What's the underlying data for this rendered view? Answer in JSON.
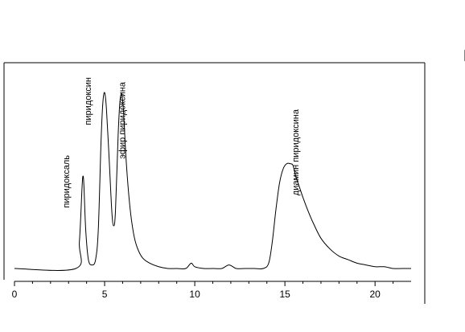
{
  "chart_data": {
    "type": "line",
    "title": "",
    "xlabel": "",
    "ylabel": "",
    "xlim": [
      0,
      22
    ],
    "ylim": [
      0,
      1
    ],
    "grid": false,
    "x_ticks": [
      "0",
      "5",
      "10",
      "15",
      "20"
    ],
    "series": [
      {
        "x": [
          0,
          3.4,
          3.6,
          3.75,
          3.8,
          3.85,
          3.95,
          4.1,
          4.3,
          4.5,
          4.65,
          4.8,
          4.9,
          5.0,
          5.1,
          5.25,
          5.4,
          5.5,
          5.6,
          5.75,
          5.85,
          5.95,
          6.05,
          6.2,
          6.4,
          6.6,
          6.8,
          7.1,
          7.5,
          8.0,
          8.5,
          9.0,
          9.5,
          9.8,
          10.0,
          10.5,
          11.0,
          11.5,
          11.9,
          12.3,
          12.8,
          13.3,
          13.8,
          14.1,
          14.3,
          14.5,
          14.7,
          14.9,
          15.1,
          15.3,
          15.45,
          15.6,
          15.8,
          16.0,
          16.3,
          16.6,
          17.0,
          17.5,
          18.0,
          18.5,
          19.0,
          19.5,
          20.0,
          20.5,
          21.0,
          21.5,
          22.0
        ],
        "y": [
          0.0,
          0.0,
          0.15,
          0.46,
          0.52,
          0.47,
          0.22,
          0.05,
          0.02,
          0.05,
          0.22,
          0.71,
          0.93,
          0.99,
          0.9,
          0.62,
          0.32,
          0.24,
          0.32,
          0.75,
          0.94,
          0.98,
          0.88,
          0.6,
          0.35,
          0.2,
          0.12,
          0.06,
          0.03,
          0.01,
          0.0,
          0.0,
          0.0,
          0.03,
          0.01,
          0.0,
          0.0,
          0.0,
          0.02,
          0.0,
          0.0,
          0.0,
          0.0,
          0.03,
          0.15,
          0.33,
          0.48,
          0.56,
          0.59,
          0.59,
          0.58,
          0.52,
          0.46,
          0.4,
          0.32,
          0.25,
          0.17,
          0.11,
          0.07,
          0.05,
          0.03,
          0.02,
          0.01,
          0.01,
          0.0,
          0.0,
          0.0
        ]
      }
    ],
    "annotations": [
      {
        "text": "пиридоксаль",
        "x": 3.8
      },
      {
        "text": "пиридоксин",
        "x": 5.0
      },
      {
        "text": "эфир пиридоксина",
        "x": 6.9
      },
      {
        "text": "диамин пиридоксина",
        "x": 16.5
      }
    ]
  }
}
